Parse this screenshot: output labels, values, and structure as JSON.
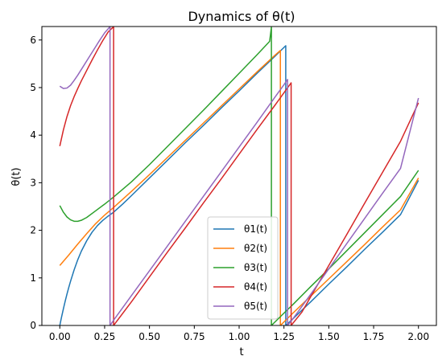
{
  "chart_data": {
    "type": "line",
    "title": "Dynamics of θ(t)",
    "xlabel": "t",
    "ylabel": "θ(t)",
    "xlim": [
      -0.1,
      2.1
    ],
    "ylim": [
      0,
      6.2832
    ],
    "xticks": [
      0.0,
      0.25,
      0.5,
      0.75,
      1.0,
      1.25,
      1.5,
      1.75,
      2.0
    ],
    "xtick_labels": [
      "0.00",
      "0.25",
      "0.50",
      "0.75",
      "1.00",
      "1.25",
      "1.50",
      "1.75",
      "2.00"
    ],
    "yticks": [
      0,
      1,
      2,
      3,
      4,
      5,
      6
    ],
    "ytick_labels": [
      "0",
      "1",
      "2",
      "3",
      "4",
      "5",
      "6"
    ],
    "grid": false,
    "legend_position": "lower-center",
    "series": [
      {
        "name": "θ1(t)",
        "color": "#1f77b4",
        "x": [
          0.0,
          0.01,
          0.02,
          0.03,
          0.04,
          0.05,
          0.06,
          0.08,
          0.1,
          0.12,
          0.15,
          0.18,
          0.21,
          0.24,
          0.27,
          0.3,
          0.35,
          0.4,
          0.5,
          0.6,
          0.7,
          0.8,
          0.9,
          1.0,
          1.1,
          1.2,
          1.26,
          1.26,
          1.3,
          1.4,
          1.5,
          1.6,
          1.7,
          1.8,
          1.9,
          2.0
        ],
        "y": [
          0.0,
          0.18,
          0.35,
          0.51,
          0.66,
          0.8,
          0.93,
          1.17,
          1.38,
          1.56,
          1.78,
          1.96,
          2.1,
          2.21,
          2.3,
          2.38,
          2.55,
          2.73,
          3.1,
          3.47,
          3.84,
          4.2,
          4.57,
          4.93,
          5.3,
          5.66,
          5.88,
          0.0,
          0.14,
          0.5,
          0.87,
          1.23,
          1.6,
          1.96,
          2.33,
          3.05
        ]
      },
      {
        "name": "θ2(t)",
        "color": "#ff7f0e",
        "x": [
          0.0,
          0.05,
          0.1,
          0.15,
          0.2,
          0.25,
          0.3,
          0.4,
          0.5,
          0.6,
          0.7,
          0.8,
          0.9,
          1.0,
          1.1,
          1.2,
          1.23,
          1.23,
          1.3,
          1.4,
          1.5,
          1.6,
          1.7,
          1.8,
          1.9,
          2.0
        ],
        "y": [
          1.26,
          1.48,
          1.71,
          1.93,
          2.14,
          2.32,
          2.48,
          2.82,
          3.17,
          3.53,
          3.89,
          4.25,
          4.61,
          4.97,
          5.33,
          5.68,
          5.78,
          0.0,
          0.26,
          0.62,
          0.98,
          1.34,
          1.7,
          2.07,
          2.43,
          3.1
        ]
      },
      {
        "name": "θ3(t)",
        "color": "#2ca02c",
        "x": [
          0.0,
          0.02,
          0.04,
          0.06,
          0.08,
          0.1,
          0.12,
          0.15,
          0.2,
          0.25,
          0.3,
          0.4,
          0.5,
          0.6,
          0.7,
          0.8,
          0.9,
          1.0,
          1.1,
          1.17,
          1.18,
          1.18,
          1.25,
          1.3,
          1.4,
          1.5,
          1.6,
          1.7,
          1.8,
          1.9,
          2.0
        ],
        "y": [
          2.52,
          2.38,
          2.28,
          2.22,
          2.19,
          2.19,
          2.21,
          2.27,
          2.41,
          2.55,
          2.7,
          3.02,
          3.38,
          3.76,
          4.14,
          4.52,
          4.91,
          5.3,
          5.69,
          5.97,
          6.27,
          0.0,
          0.26,
          0.44,
          0.82,
          1.19,
          1.57,
          1.95,
          2.33,
          2.71,
          3.26
        ]
      },
      {
        "name": "θ4(t)",
        "color": "#d62728",
        "x": [
          0.0,
          0.02,
          0.04,
          0.06,
          0.08,
          0.1,
          0.12,
          0.15,
          0.18,
          0.21,
          0.24,
          0.27,
          0.3,
          0.3,
          0.4,
          0.5,
          0.6,
          0.7,
          0.8,
          0.9,
          1.0,
          1.1,
          1.2,
          1.29,
          1.29,
          1.35,
          1.4,
          1.5,
          1.6,
          1.7,
          1.8,
          1.9,
          2.0
        ],
        "y": [
          3.77,
          4.11,
          4.39,
          4.62,
          4.81,
          4.98,
          5.14,
          5.36,
          5.58,
          5.79,
          5.99,
          6.17,
          6.28,
          0.0,
          0.5,
          1.02,
          1.54,
          2.05,
          2.57,
          3.08,
          3.6,
          4.12,
          4.63,
          5.1,
          0.0,
          0.28,
          0.61,
          1.26,
          1.91,
          2.57,
          3.22,
          3.87,
          4.68
        ]
      },
      {
        "name": "θ5(t)",
        "color": "#9467bd",
        "x": [
          0.0,
          0.02,
          0.04,
          0.06,
          0.08,
          0.1,
          0.13,
          0.16,
          0.19,
          0.22,
          0.25,
          0.28,
          0.28,
          0.3,
          0.4,
          0.5,
          0.6,
          0.7,
          0.8,
          0.9,
          1.0,
          1.1,
          1.2,
          1.25,
          1.27,
          1.27,
          1.3,
          1.4,
          1.5,
          1.6,
          1.7,
          1.8,
          1.9,
          2.0
        ],
        "y": [
          5.03,
          4.98,
          4.99,
          5.05,
          5.15,
          5.26,
          5.44,
          5.62,
          5.8,
          5.98,
          6.15,
          6.28,
          0.0,
          0.11,
          0.63,
          1.15,
          1.67,
          2.19,
          2.71,
          3.23,
          3.75,
          4.27,
          4.8,
          5.06,
          5.17,
          0.0,
          0.14,
          0.66,
          1.19,
          1.72,
          2.25,
          2.78,
          3.3,
          4.78
        ]
      }
    ]
  }
}
